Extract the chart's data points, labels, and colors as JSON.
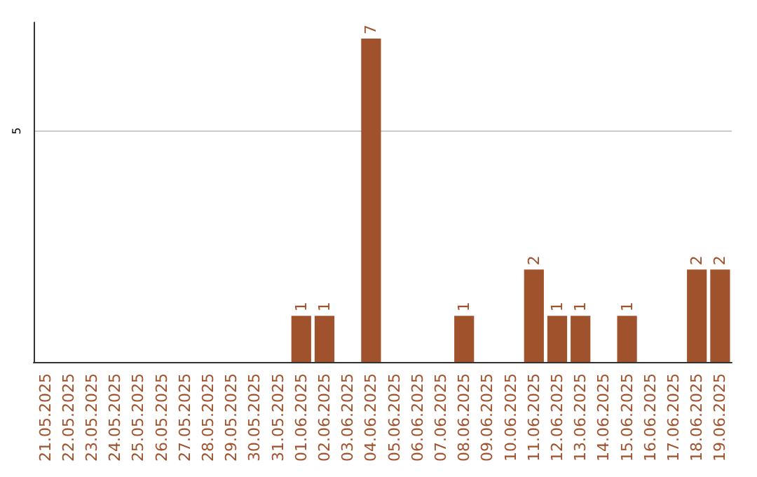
{
  "chart_data": {
    "type": "bar",
    "categories": [
      "21.05.2025",
      "22.05.2025",
      "23.05.2025",
      "24.05.2025",
      "25.05.2025",
      "26.05.2025",
      "27.05.2025",
      "28.05.2025",
      "29.05.2025",
      "30.05.2025",
      "31.05.2025",
      "01.06.2025",
      "02.06.2025",
      "03.06.2025",
      "04.06.2025",
      "05.06.2025",
      "06.06.2025",
      "07.06.2025",
      "08.06.2025",
      "09.06.2025",
      "10.06.2025",
      "11.06.2025",
      "12.06.2025",
      "13.06.2025",
      "14.06.2025",
      "15.06.2025",
      "16.06.2025",
      "17.06.2025",
      "18.06.2025",
      "19.06.2025"
    ],
    "values": [
      0,
      0,
      0,
      0,
      0,
      0,
      0,
      0,
      0,
      0,
      0,
      1,
      1,
      0,
      7,
      0,
      0,
      0,
      1,
      0,
      0,
      2,
      1,
      1,
      0,
      1,
      0,
      0,
      2,
      2
    ],
    "value_labels": [
      null,
      null,
      null,
      null,
      null,
      null,
      null,
      null,
      null,
      null,
      null,
      "1",
      "1",
      null,
      "7",
      null,
      null,
      null,
      "1",
      null,
      null,
      "2",
      "1",
      "1",
      null,
      "1",
      null,
      null,
      "2",
      "2"
    ],
    "color": "#a0522d",
    "ylim": [
      0,
      7.35
    ],
    "yticks": [
      5
    ],
    "grid": "y"
  }
}
